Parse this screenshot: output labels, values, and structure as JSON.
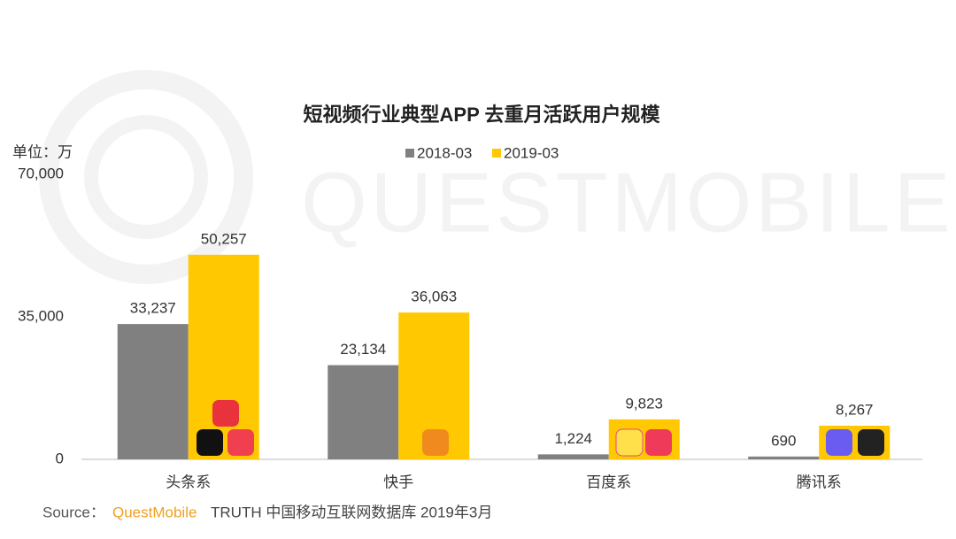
{
  "chart_data": {
    "type": "bar",
    "title": "短视频行业典型APP 去重月活跃用户规模",
    "watermark": "QUESTMOBILE",
    "y_unit": "单位：万",
    "categories": [
      "头条系",
      "快手",
      "百度系",
      "腾讯系"
    ],
    "series": [
      {
        "name": "2018-03",
        "color": "#808080",
        "values": [
          33237,
          23134,
          1224,
          690
        ],
        "value_labels": [
          "33,237",
          "23,134",
          "1,224",
          "690"
        ]
      },
      {
        "name": "2019-03",
        "color": "#ffc800",
        "values": [
          50257,
          36063,
          9823,
          8267
        ],
        "value_labels": [
          "50,257",
          "36,063",
          "9,823",
          "8,267"
        ]
      }
    ],
    "ylim": [
      0,
      70000
    ],
    "yticks": [
      0,
      {
        "value": 35000,
        "label": "35,000"
      },
      {
        "value": 70000,
        "label": "70,000"
      }
    ],
    "grid": false,
    "source_label": "Source：",
    "source_brand": "QuestMobile",
    "source_text": "TRUTH 中国移动互联网数据库 2019年3月"
  }
}
